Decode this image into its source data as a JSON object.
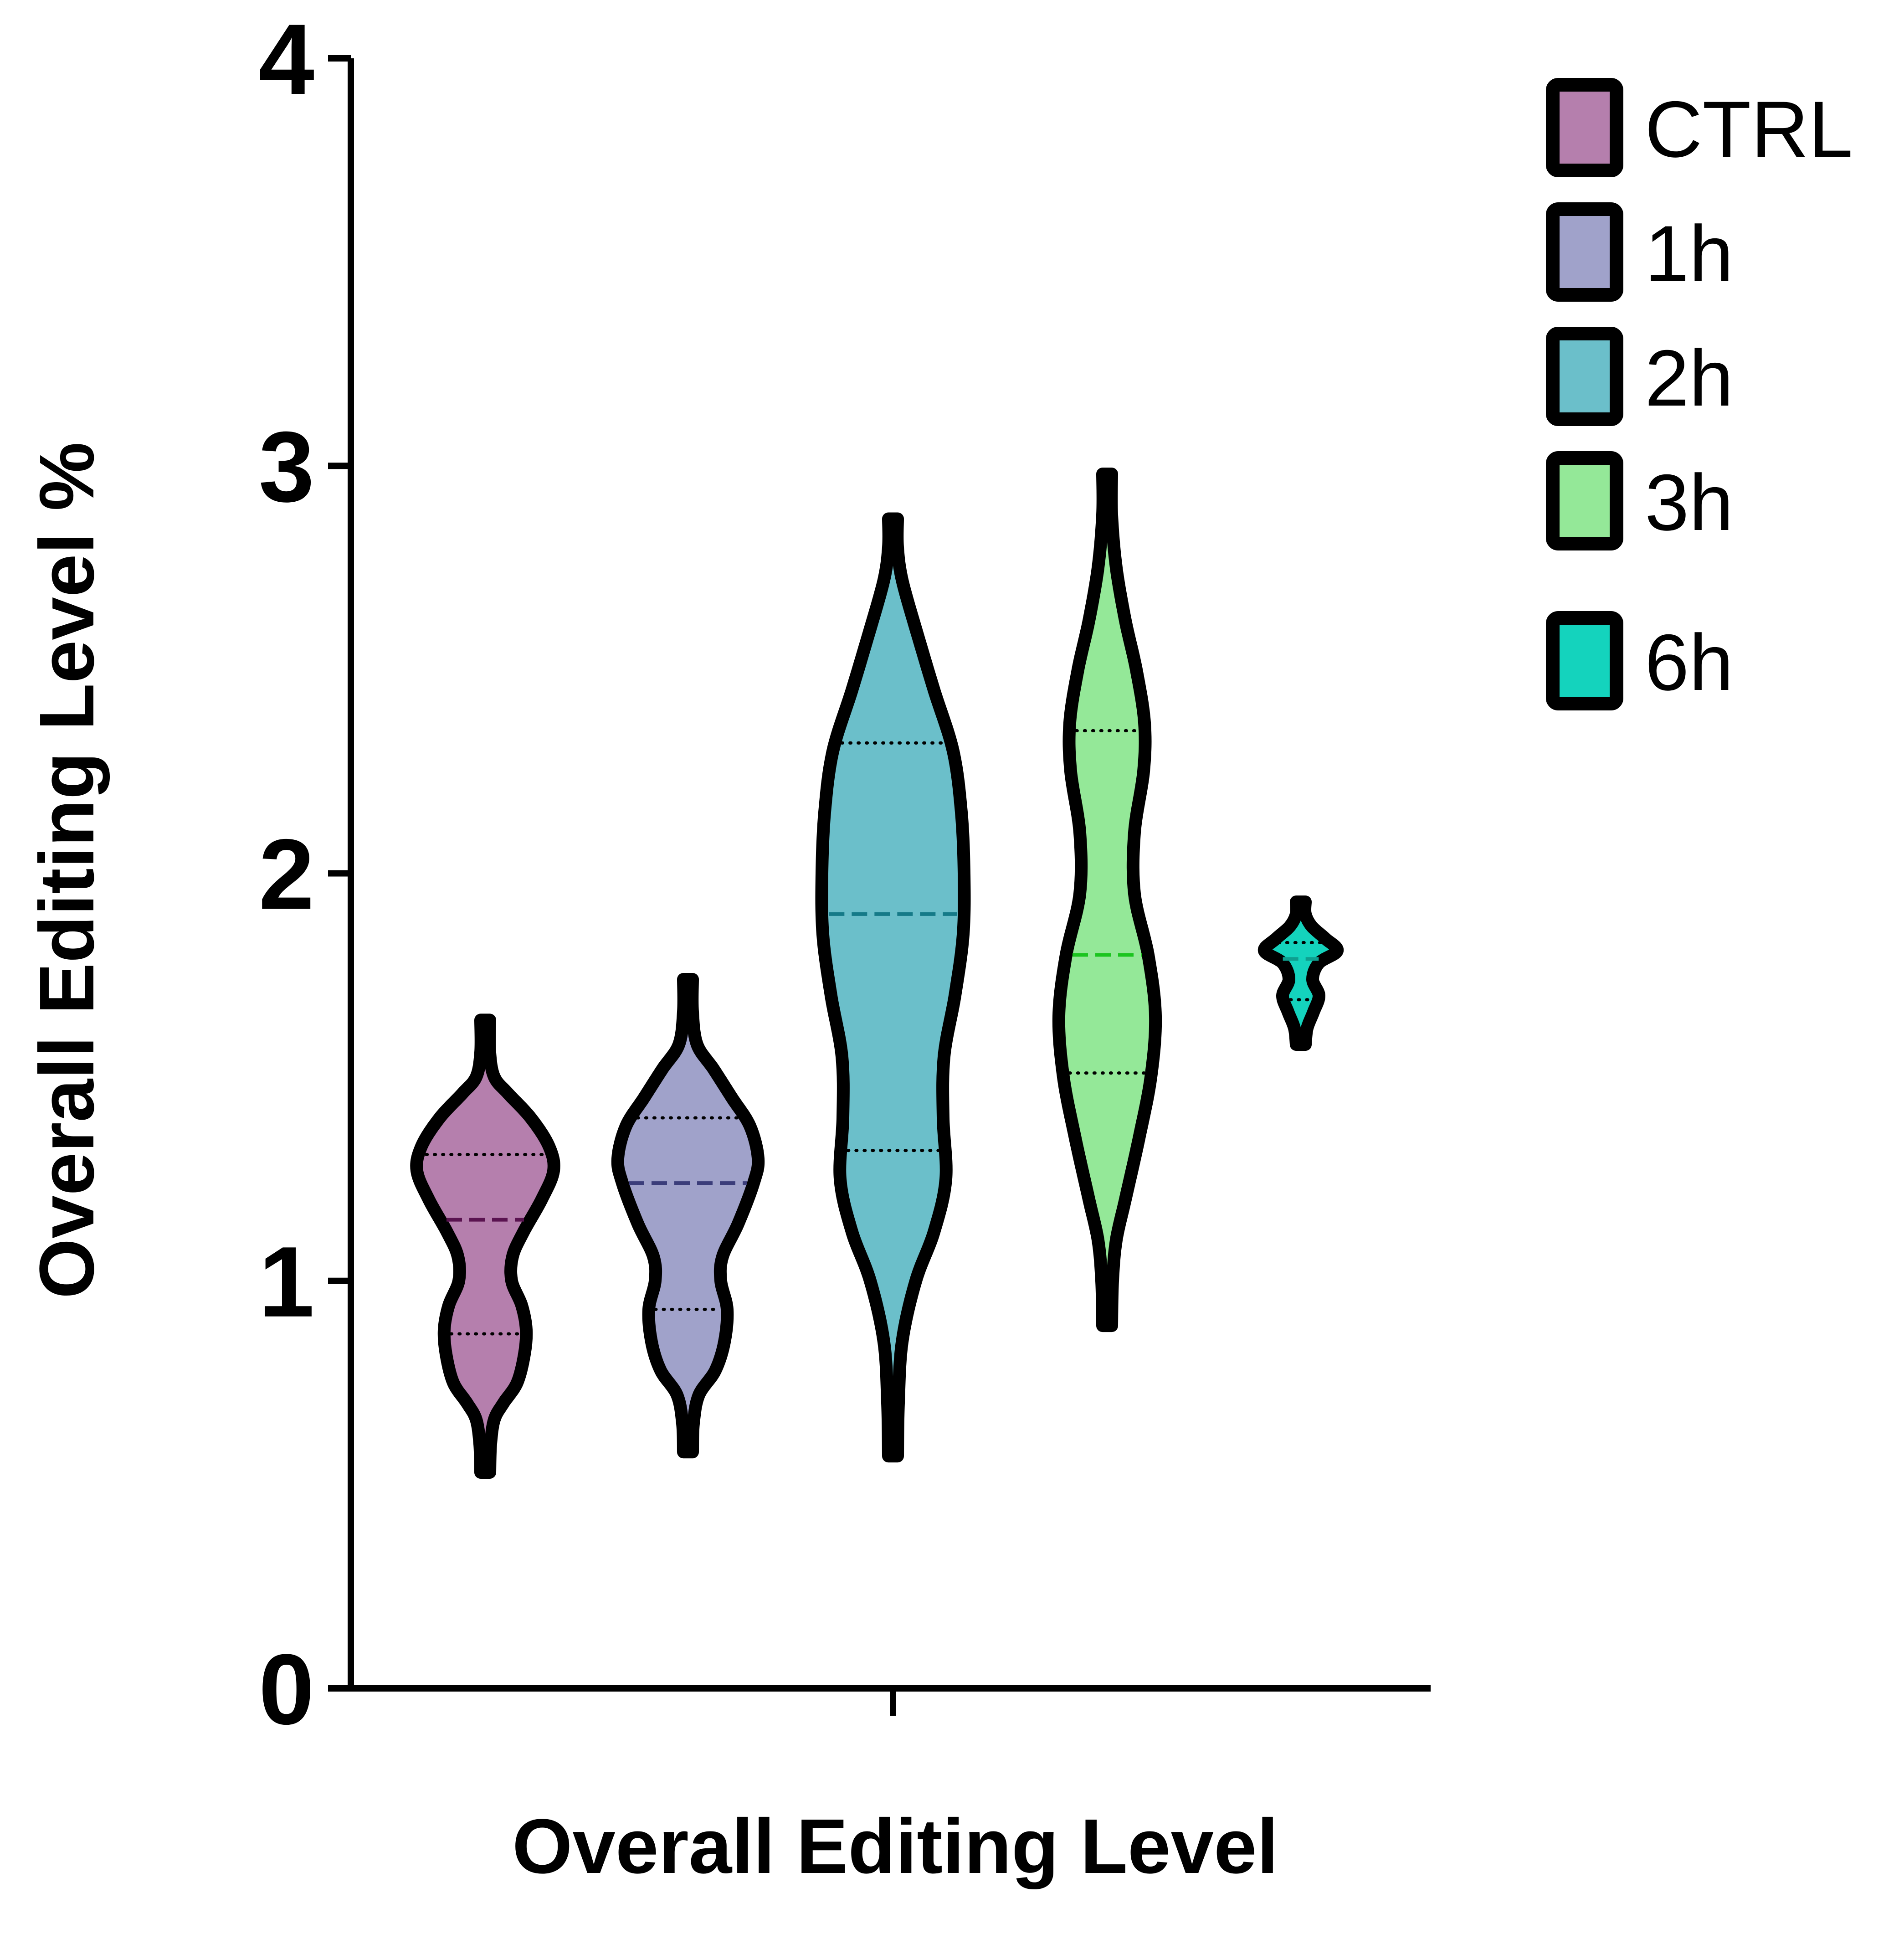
{
  "chart_data": {
    "type": "violin",
    "xlabel": "Overall Editing Level",
    "ylabel": "Overall Editing Level %",
    "ylim": [
      0,
      4
    ],
    "yticks": [
      "0",
      "1",
      "2",
      "3",
      "4"
    ],
    "grid": false,
    "legend_position": "top-right",
    "series": [
      {
        "name": "CTRL",
        "color": "#b57fad",
        "median_color": "#5a1350",
        "range": [
          0.53,
          1.64
        ],
        "median": 1.15,
        "quartiles": [
          0.87,
          1.31
        ],
        "density": [
          [
            0.53,
            0.05
          ],
          [
            0.6,
            0.06
          ],
          [
            0.66,
            0.1
          ],
          [
            0.7,
            0.2
          ],
          [
            0.75,
            0.35
          ],
          [
            0.82,
            0.43
          ],
          [
            0.88,
            0.45
          ],
          [
            0.94,
            0.4
          ],
          [
            1.0,
            0.29
          ],
          [
            1.06,
            0.3
          ],
          [
            1.12,
            0.42
          ],
          [
            1.2,
            0.62
          ],
          [
            1.27,
            0.75
          ],
          [
            1.33,
            0.7
          ],
          [
            1.4,
            0.5
          ],
          [
            1.46,
            0.25
          ],
          [
            1.5,
            0.1
          ],
          [
            1.56,
            0.05
          ],
          [
            1.64,
            0.05
          ]
        ]
      },
      {
        "name": "1h",
        "color": "#a0a2ca",
        "median_color": "#3b3d7a",
        "range": [
          0.58,
          1.74
        ],
        "median": 1.24,
        "quartiles": [
          0.93,
          1.4
        ],
        "density": [
          [
            0.58,
            0.05
          ],
          [
            0.65,
            0.06
          ],
          [
            0.72,
            0.12
          ],
          [
            0.78,
            0.3
          ],
          [
            0.85,
            0.4
          ],
          [
            0.93,
            0.43
          ],
          [
            1.0,
            0.36
          ],
          [
            1.06,
            0.38
          ],
          [
            1.14,
            0.55
          ],
          [
            1.24,
            0.72
          ],
          [
            1.3,
            0.77
          ],
          [
            1.38,
            0.68
          ],
          [
            1.45,
            0.48
          ],
          [
            1.52,
            0.28
          ],
          [
            1.58,
            0.1
          ],
          [
            1.66,
            0.05
          ],
          [
            1.74,
            0.05
          ]
        ]
      },
      {
        "name": "2h",
        "color": "#6bbfca",
        "median_color": "#157a88",
        "range": [
          0.57,
          2.87
        ],
        "median": 1.9,
        "quartiles": [
          1.32,
          2.32
        ],
        "density": [
          [
            0.57,
            0.05
          ],
          [
            0.7,
            0.06
          ],
          [
            0.85,
            0.1
          ],
          [
            1.0,
            0.25
          ],
          [
            1.12,
            0.45
          ],
          [
            1.25,
            0.58
          ],
          [
            1.4,
            0.55
          ],
          [
            1.55,
            0.56
          ],
          [
            1.7,
            0.68
          ],
          [
            1.85,
            0.77
          ],
          [
            2.0,
            0.78
          ],
          [
            2.15,
            0.75
          ],
          [
            2.3,
            0.66
          ],
          [
            2.45,
            0.45
          ],
          [
            2.6,
            0.25
          ],
          [
            2.72,
            0.1
          ],
          [
            2.8,
            0.05
          ],
          [
            2.87,
            0.05
          ]
        ]
      },
      {
        "name": "3h",
        "color": "#94e898",
        "median_color": "#1bc51f",
        "range": [
          0.89,
          2.98
        ],
        "median": 1.8,
        "quartiles": [
          1.51,
          2.35
        ],
        "density": [
          [
            0.89,
            0.05
          ],
          [
            1.0,
            0.06
          ],
          [
            1.1,
            0.1
          ],
          [
            1.2,
            0.2
          ],
          [
            1.35,
            0.35
          ],
          [
            1.5,
            0.48
          ],
          [
            1.65,
            0.53
          ],
          [
            1.8,
            0.45
          ],
          [
            1.95,
            0.3
          ],
          [
            2.1,
            0.3
          ],
          [
            2.25,
            0.4
          ],
          [
            2.37,
            0.41
          ],
          [
            2.5,
            0.32
          ],
          [
            2.62,
            0.2
          ],
          [
            2.75,
            0.1
          ],
          [
            2.88,
            0.05
          ],
          [
            2.98,
            0.05
          ]
        ]
      },
      {
        "name": "6h",
        "color": "#14d3bd",
        "median_color": "#0ea090",
        "range": [
          1.58,
          1.93
        ],
        "median": 1.79,
        "quartiles": [
          1.69,
          1.83
        ],
        "density": [
          [
            1.58,
            0.05
          ],
          [
            1.62,
            0.07
          ],
          [
            1.66,
            0.14
          ],
          [
            1.7,
            0.2
          ],
          [
            1.74,
            0.13
          ],
          [
            1.78,
            0.2
          ],
          [
            1.81,
            0.4
          ],
          [
            1.84,
            0.27
          ],
          [
            1.87,
            0.12
          ],
          [
            1.9,
            0.05
          ],
          [
            1.93,
            0.05
          ]
        ]
      }
    ]
  }
}
